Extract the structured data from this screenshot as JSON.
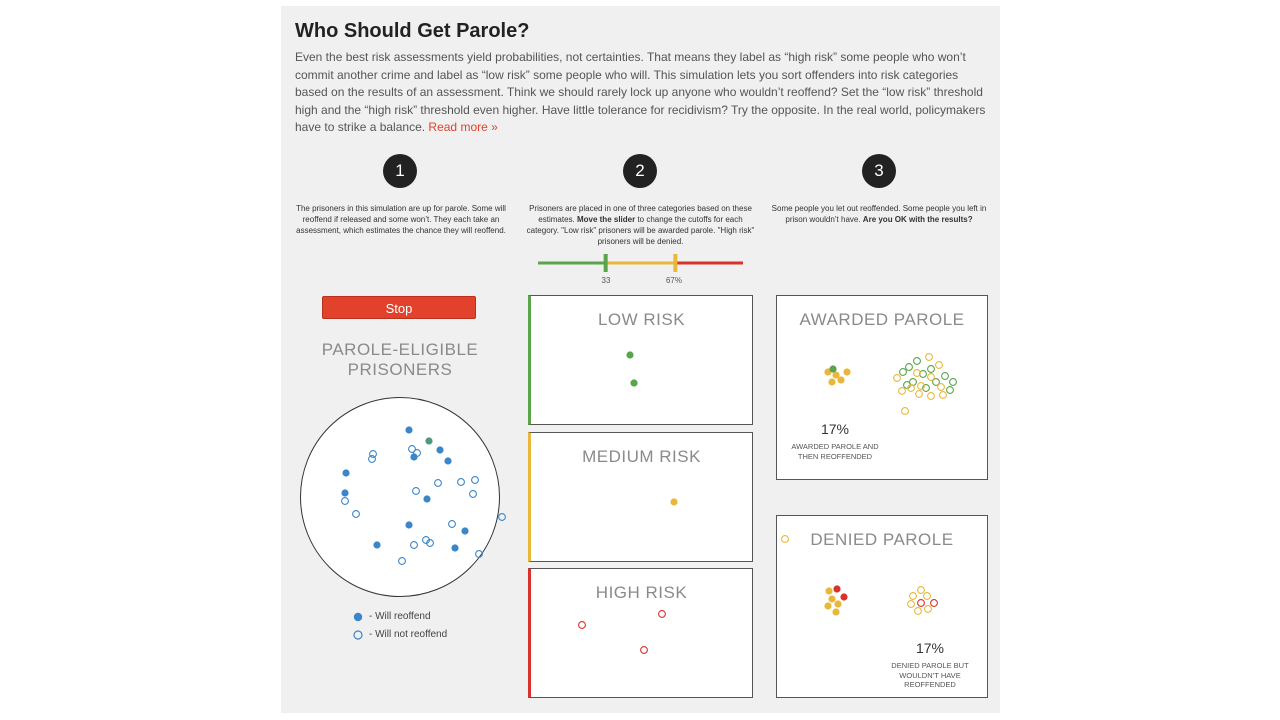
{
  "header": {
    "title": "Who Should Get Parole?",
    "intro": "Even the best risk assessments yield probabilities, not certainties. That means they label as “high risk” some people who won’t commit another crime and label as “low risk” some people who will. This simulation lets you sort offenders into risk categories based on the results of an assessment. Think we should rarely lock up anyone who wouldn’t reoffend? Set the “low risk” threshold high and the “high risk” threshold even higher. Have little tolerance for recidivism? Try the opposite. In the real world, policymakers have to strike a balance.",
    "read_more": "Read more »"
  },
  "steps": [
    {
      "number": "1",
      "text": "The prisoners in this simulation are up for parole. Some will reoffend if released and some won’t. They each take an assessment, which estimates the chance they will reoffend."
    },
    {
      "number": "2",
      "text_before": "Prisoners are placed in one of three categories based on these estimates. ",
      "bold": "Move the slider",
      "text_after": " to change the cutoffs for each category. \"Low risk\" prisoners will be awarded parole. \"High risk\" prisoners will be denied."
    },
    {
      "number": "3",
      "text_before": "Some people you let out reoffended. Some people you left in prison wouldn’t have. ",
      "bold": "Are you OK with the results?"
    }
  ],
  "slider": {
    "low_threshold": 33,
    "high_threshold": 67,
    "low_label": "33",
    "high_label": "67%",
    "colors": {
      "low": "#5aa449",
      "medium": "#e9b83a",
      "high": "#d9322a"
    }
  },
  "controls": {
    "stop_label": "Stop"
  },
  "pool": {
    "heading_line1": "PAROLE-ELIGIBLE",
    "heading_line2": "PRISONERS",
    "legend_reoffend": "- Will reoffend",
    "legend_not_reoffend": "- Will not reoffend",
    "dot_color": "#3b86c8"
  },
  "risk_boxes": {
    "low": "LOW RISK",
    "medium": "MEDIUM RISK",
    "high": "HIGH RISK"
  },
  "results": {
    "awarded": {
      "title": "AWARDED PAROLE",
      "percent": "17%",
      "label_line1": "AWARDED PAROLE AND",
      "label_line2": "THEN REOFFENDED"
    },
    "denied": {
      "title": "DENIED PAROLE",
      "percent": "17%",
      "label_line1": "DENIED PAROLE BUT",
      "label_line2": "WOULDN’T HAVE",
      "label_line3": "REOFFENDED"
    }
  }
}
